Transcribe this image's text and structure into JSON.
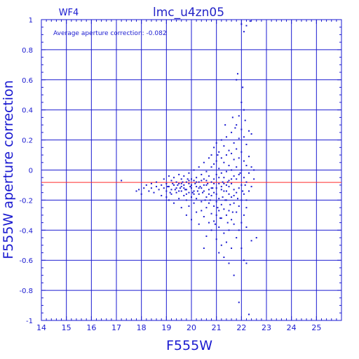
{
  "chart_data": {
    "type": "scatter",
    "title": "lmc_u4zn05",
    "chip_label": "WF4",
    "annotation": "Average aperture correction:  -0.082",
    "xlabel": "F555W",
    "ylabel": "F555W aperture correction",
    "xlim": [
      14,
      26
    ],
    "ylim": [
      -1,
      1
    ],
    "x_ticks": [
      "14",
      "15",
      "16",
      "17",
      "18",
      "19",
      "20",
      "21",
      "22",
      "23",
      "24",
      "25"
    ],
    "y_ticks": [
      "-1",
      "-0.8",
      "-0.6",
      "-0.4",
      "-0.2",
      "0",
      "0.2",
      "0.4",
      "0.6",
      "0.8",
      "1"
    ],
    "grid": true,
    "reference_line": {
      "y": -0.082,
      "color": "#ff2a2a"
    },
    "colors": {
      "axes": "#1a1ad0",
      "points": "#1a1ad0",
      "reference": "#ff2a2a"
    },
    "points": [
      [
        17.2,
        -0.07
      ],
      [
        17.8,
        -0.14
      ],
      [
        17.9,
        -0.13
      ],
      [
        18.0,
        -0.16
      ],
      [
        18.1,
        -0.12
      ],
      [
        18.2,
        -0.1
      ],
      [
        18.3,
        -0.14
      ],
      [
        18.4,
        -0.09
      ],
      [
        18.4,
        -0.12
      ],
      [
        18.5,
        -0.15
      ],
      [
        18.6,
        -0.11
      ],
      [
        18.6,
        -0.08
      ],
      [
        18.7,
        -0.13
      ],
      [
        18.8,
        -0.1
      ],
      [
        18.8,
        -0.17
      ],
      [
        18.9,
        -0.06
      ],
      [
        18.9,
        -0.12
      ],
      [
        19.0,
        -0.09
      ],
      [
        19.0,
        -0.14
      ],
      [
        19.0,
        -0.18
      ],
      [
        19.1,
        -0.04
      ],
      [
        19.1,
        -0.11
      ],
      [
        19.1,
        -0.2
      ],
      [
        19.2,
        -0.07
      ],
      [
        19.2,
        -0.13
      ],
      [
        19.2,
        -0.16
      ],
      [
        19.3,
        -0.05
      ],
      [
        19.3,
        -0.1
      ],
      [
        19.3,
        -0.22
      ],
      [
        19.4,
        -0.08
      ],
      [
        19.4,
        -0.12
      ],
      [
        19.4,
        -0.15
      ],
      [
        19.5,
        -0.03
      ],
      [
        19.5,
        -0.09
      ],
      [
        19.5,
        -0.19
      ],
      [
        19.6,
        -0.06
      ],
      [
        19.6,
        -0.11
      ],
      [
        19.6,
        -0.14
      ],
      [
        19.6,
        -0.25
      ],
      [
        19.7,
        -0.04
      ],
      [
        19.7,
        -0.1
      ],
      [
        19.7,
        -0.17
      ],
      [
        19.8,
        -0.08
      ],
      [
        19.8,
        -0.13
      ],
      [
        19.8,
        -0.2
      ],
      [
        19.8,
        -0.3
      ],
      [
        19.9,
        -0.02
      ],
      [
        19.9,
        -0.09
      ],
      [
        19.9,
        -0.15
      ],
      [
        19.9,
        -0.24
      ],
      [
        20.0,
        -0.06
      ],
      [
        20.0,
        -0.12
      ],
      [
        20.0,
        -0.18
      ],
      [
        20.0,
        -0.33
      ],
      [
        20.1,
        0.0
      ],
      [
        20.1,
        -0.07
      ],
      [
        20.1,
        -0.14
      ],
      [
        20.1,
        -0.22
      ],
      [
        20.2,
        -0.05
      ],
      [
        20.2,
        -0.11
      ],
      [
        20.2,
        -0.19
      ],
      [
        20.2,
        -0.28
      ],
      [
        20.3,
        0.02
      ],
      [
        20.3,
        -0.08
      ],
      [
        20.3,
        -0.16
      ],
      [
        20.3,
        -0.36
      ],
      [
        20.4,
        -0.03
      ],
      [
        20.4,
        -0.12
      ],
      [
        20.4,
        -0.21
      ],
      [
        20.4,
        -0.27
      ],
      [
        20.5,
        0.05
      ],
      [
        20.5,
        -0.06
      ],
      [
        20.5,
        -0.14
      ],
      [
        20.5,
        -0.31
      ],
      [
        20.5,
        -0.52
      ],
      [
        20.6,
        -0.01
      ],
      [
        20.6,
        -0.1
      ],
      [
        20.6,
        -0.18
      ],
      [
        20.6,
        -0.25
      ],
      [
        20.6,
        -0.44
      ],
      [
        20.7,
        0.08
      ],
      [
        20.7,
        -0.04
      ],
      [
        20.7,
        -0.13
      ],
      [
        20.7,
        -0.22
      ],
      [
        20.7,
        -0.35
      ],
      [
        20.8,
        0.1
      ],
      [
        20.8,
        0.02
      ],
      [
        20.8,
        -0.08
      ],
      [
        20.8,
        -0.17
      ],
      [
        20.8,
        -0.29
      ],
      [
        20.8,
        -0.4
      ],
      [
        20.9,
        0.15
      ],
      [
        20.9,
        0.04
      ],
      [
        20.9,
        -0.06
      ],
      [
        20.9,
        -0.15
      ],
      [
        20.9,
        -0.24
      ],
      [
        20.9,
        -0.34
      ],
      [
        21.0,
        0.18
      ],
      [
        21.0,
        0.06
      ],
      [
        21.0,
        -0.03
      ],
      [
        21.0,
        -0.12
      ],
      [
        21.0,
        -0.21
      ],
      [
        21.0,
        -0.3
      ],
      [
        21.0,
        -0.46
      ],
      [
        21.1,
        0.12
      ],
      [
        21.1,
        0.01
      ],
      [
        21.1,
        -0.09
      ],
      [
        21.1,
        -0.19
      ],
      [
        21.1,
        -0.27
      ],
      [
        21.1,
        -0.38
      ],
      [
        21.1,
        -0.55
      ],
      [
        21.2,
        0.2
      ],
      [
        21.2,
        0.08
      ],
      [
        21.2,
        -0.02
      ],
      [
        21.2,
        -0.11
      ],
      [
        21.2,
        -0.23
      ],
      [
        21.2,
        -0.32
      ],
      [
        21.2,
        -0.5
      ],
      [
        21.3,
        0.16
      ],
      [
        21.3,
        0.05
      ],
      [
        21.3,
        -0.05
      ],
      [
        21.3,
        -0.14
      ],
      [
        21.3,
        -0.26
      ],
      [
        21.3,
        -0.42
      ],
      [
        21.3,
        -0.58
      ],
      [
        21.4,
        0.22
      ],
      [
        21.4,
        0.1
      ],
      [
        21.4,
        -0.01
      ],
      [
        21.4,
        -0.1
      ],
      [
        21.4,
        -0.2
      ],
      [
        21.4,
        -0.3
      ],
      [
        21.4,
        -0.48
      ],
      [
        21.5,
        0.13
      ],
      [
        21.5,
        0.03
      ],
      [
        21.5,
        -0.07
      ],
      [
        21.5,
        -0.16
      ],
      [
        21.5,
        -0.27
      ],
      [
        21.5,
        -0.4
      ],
      [
        21.5,
        -0.62
      ],
      [
        21.6,
        0.25
      ],
      [
        21.6,
        0.11
      ],
      [
        21.6,
        0.0
      ],
      [
        21.6,
        -0.09
      ],
      [
        21.6,
        -0.18
      ],
      [
        21.6,
        -0.33
      ],
      [
        21.6,
        -0.52
      ],
      [
        21.7,
        0.18
      ],
      [
        21.7,
        0.07
      ],
      [
        21.7,
        -0.04
      ],
      [
        21.7,
        -0.13
      ],
      [
        21.7,
        -0.22
      ],
      [
        21.7,
        -0.36
      ],
      [
        21.7,
        -0.7
      ],
      [
        21.8,
        0.3
      ],
      [
        21.8,
        0.14
      ],
      [
        21.8,
        0.02
      ],
      [
        21.8,
        -0.06
      ],
      [
        21.8,
        -0.15
      ],
      [
        21.8,
        -0.28
      ],
      [
        21.8,
        -0.45
      ],
      [
        21.8,
        0.6
      ],
      [
        21.85,
        0.64
      ],
      [
        21.9,
        0.36
      ],
      [
        21.9,
        0.21
      ],
      [
        21.9,
        0.08
      ],
      [
        21.9,
        -0.03
      ],
      [
        21.9,
        -0.12
      ],
      [
        21.9,
        -0.24
      ],
      [
        21.9,
        -0.4
      ],
      [
        21.9,
        -0.88
      ],
      [
        22.0,
        0.45
      ],
      [
        22.0,
        0.27
      ],
      [
        22.0,
        0.12
      ],
      [
        22.0,
        0.0
      ],
      [
        22.0,
        -0.1
      ],
      [
        22.0,
        -0.2
      ],
      [
        22.0,
        -0.35
      ],
      [
        22.0,
        -0.52
      ],
      [
        22.0,
        0.97
      ],
      [
        22.05,
        0.55
      ],
      [
        22.1,
        0.4
      ],
      [
        22.1,
        0.22
      ],
      [
        22.1,
        0.06
      ],
      [
        22.1,
        -0.05
      ],
      [
        22.1,
        -0.16
      ],
      [
        22.1,
        -0.3
      ],
      [
        22.1,
        -0.6
      ],
      [
        22.1,
        0.92
      ],
      [
        22.15,
        0.33
      ],
      [
        22.2,
        0.17
      ],
      [
        22.2,
        0.03
      ],
      [
        22.2,
        -0.08
      ],
      [
        22.2,
        -0.2
      ],
      [
        22.2,
        -0.38
      ],
      [
        22.2,
        -0.62
      ],
      [
        22.2,
        0.96
      ],
      [
        22.3,
        0.26
      ],
      [
        22.3,
        0.09
      ],
      [
        22.3,
        -0.02
      ],
      [
        22.3,
        -0.14
      ],
      [
        22.3,
        -0.96
      ],
      [
        22.35,
        0.99
      ],
      [
        22.4,
        0.24
      ],
      [
        22.4,
        0.02
      ],
      [
        22.4,
        -0.11
      ],
      [
        22.4,
        -0.47
      ],
      [
        22.5,
        0.0
      ],
      [
        22.5,
        -0.06
      ],
      [
        22.6,
        -0.45
      ],
      [
        22.2,
        -0.25
      ],
      [
        21.95,
        -0.02
      ],
      [
        21.75,
        0.28
      ],
      [
        21.65,
        0.35
      ],
      [
        21.45,
        -0.08
      ],
      [
        21.35,
        0.3
      ],
      [
        21.25,
        -0.18
      ],
      [
        21.05,
        0.1
      ],
      [
        20.95,
        -0.36
      ],
      [
        20.85,
        -0.12
      ],
      [
        20.75,
        -0.2
      ],
      [
        20.65,
        -0.09
      ],
      [
        20.55,
        -0.2
      ],
      [
        20.45,
        -0.15
      ],
      [
        20.35,
        -0.11
      ],
      [
        20.25,
        -0.14
      ],
      [
        20.15,
        -0.09
      ],
      [
        20.05,
        -0.15
      ],
      [
        19.95,
        -0.11
      ],
      [
        19.85,
        -0.06
      ],
      [
        19.75,
        -0.13
      ],
      [
        19.65,
        -0.08
      ],
      [
        19.55,
        -0.12
      ],
      [
        19.45,
        -0.1
      ],
      [
        19.35,
        -0.13
      ],
      [
        19.25,
        -0.09
      ],
      [
        19.15,
        -0.15
      ],
      [
        19.05,
        -0.11
      ],
      [
        20.5,
        -0.1
      ],
      [
        20.6,
        -0.07
      ],
      [
        20.7,
        -0.16
      ],
      [
        20.8,
        -0.12
      ],
      [
        20.9,
        -0.09
      ],
      [
        21.0,
        -0.16
      ],
      [
        21.1,
        -0.05
      ],
      [
        21.2,
        -0.13
      ],
      [
        21.3,
        -0.09
      ],
      [
        21.4,
        -0.14
      ],
      [
        21.5,
        -0.11
      ],
      [
        21.6,
        -0.06
      ],
      [
        21.7,
        -0.17
      ],
      [
        19.5,
        -0.14
      ],
      [
        19.6,
        -0.09
      ],
      [
        19.7,
        -0.12
      ],
      [
        19.8,
        -0.16
      ],
      [
        19.9,
        -0.07
      ],
      [
        20.0,
        -0.1
      ],
      [
        20.1,
        -0.16
      ],
      [
        20.2,
        -0.08
      ],
      [
        20.3,
        -0.12
      ],
      [
        20.4,
        -0.07
      ],
      [
        21.05,
        -0.25
      ],
      [
        21.15,
        -0.32
      ],
      [
        21.25,
        -0.08
      ],
      [
        21.35,
        -0.2
      ],
      [
        21.55,
        -0.23
      ],
      [
        21.85,
        -0.19
      ],
      [
        22.05,
        -0.14
      ],
      [
        22.15,
        -0.1
      ],
      [
        21.65,
        -0.28
      ],
      [
        21.45,
        -0.35
      ]
    ]
  }
}
